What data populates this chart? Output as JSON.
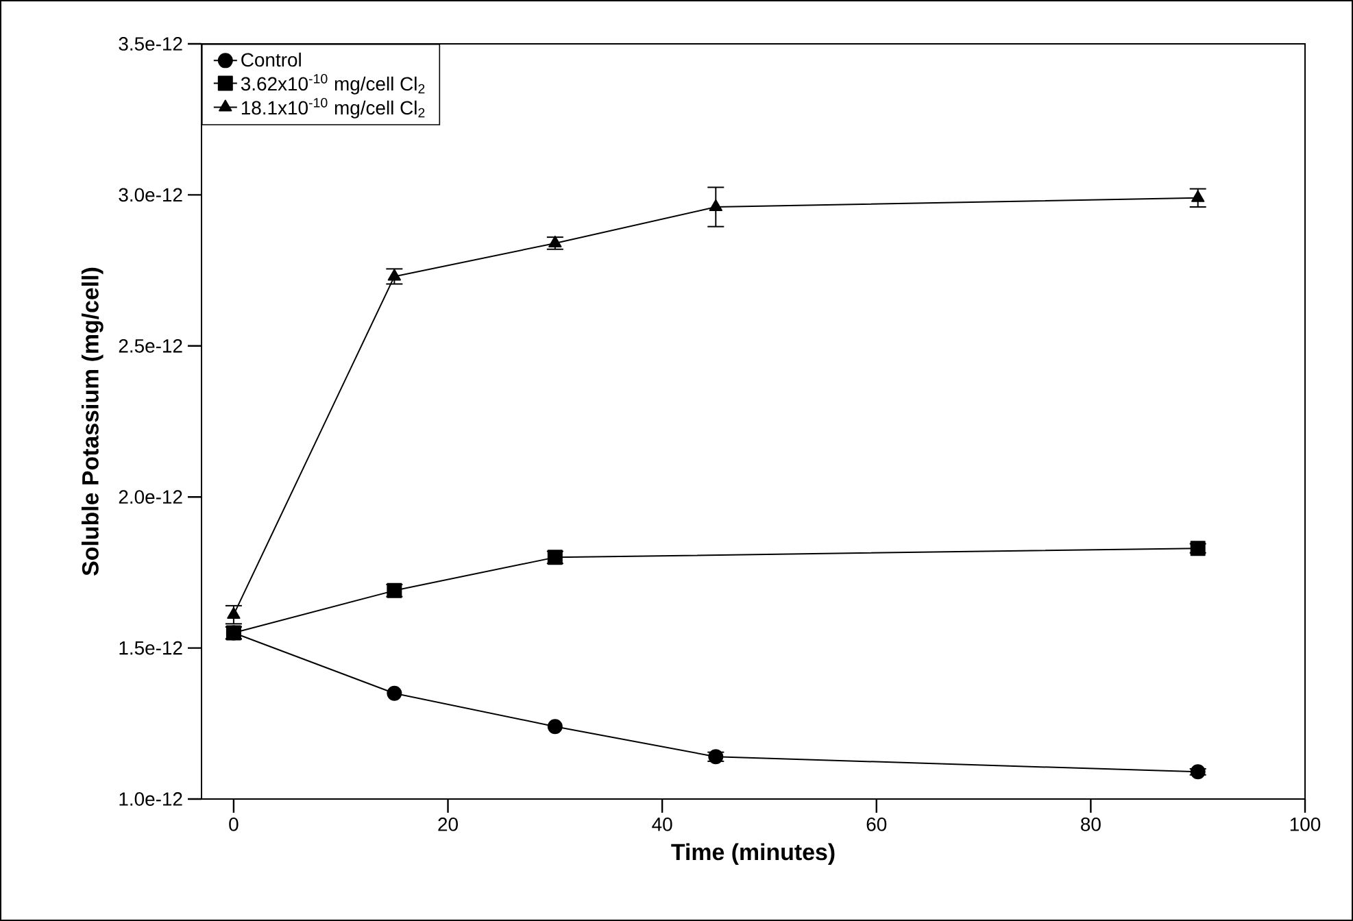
{
  "chart_data": {
    "type": "line",
    "xlabel": "Time (minutes)",
    "ylabel": "Soluble Potassium (mg/cell)",
    "xlim": [
      -3,
      100
    ],
    "xticks": [
      0,
      20,
      40,
      60,
      80,
      100
    ],
    "ylim": [
      1e-12,
      3.5e-12
    ],
    "yticks": [
      {
        "value": 1e-12,
        "label": "1.0e-12"
      },
      {
        "value": 1.5e-12,
        "label": "1.5e-12"
      },
      {
        "value": 2e-12,
        "label": "2.0e-12"
      },
      {
        "value": 2.5e-12,
        "label": "2.5e-12"
      },
      {
        "value": 3e-12,
        "label": "3.0e-12"
      },
      {
        "value": 3.5e-12,
        "label": "3.5e-12"
      }
    ],
    "grid": false,
    "legend": "top left",
    "line_style": "solid",
    "x": [
      0,
      15,
      30,
      45,
      90
    ],
    "series": [
      {
        "name": "Control",
        "color": "#000000",
        "marker": "circle",
        "values": [
          1.55e-12,
          1.35e-12,
          1.24e-12,
          1.14e-12,
          1.09e-12
        ],
        "errors": [
          2e-14,
          null,
          null,
          1.5e-14,
          1e-14
        ]
      },
      {
        "name": "3.62x10$^{-10}$ mg/cell Cl$_{2}$",
        "color": "#000000",
        "marker": "square",
        "values": [
          1.55e-12,
          1.69e-12,
          1.8e-12,
          null,
          1.83e-12
        ],
        "errors": [
          2e-14,
          2e-14,
          2e-14,
          null,
          1.5e-14
        ]
      },
      {
        "name": "18.1x10$^{-10}$ mg/cell Cl$_{2}$",
        "color": "#000000",
        "marker": "triangle",
        "values": [
          1.61e-12,
          2.73e-12,
          2.84e-12,
          2.96e-12,
          2.99e-12
        ],
        "errors": [
          3e-14,
          2.5e-14,
          2e-14,
          6.5e-14,
          3e-14
        ]
      }
    ]
  }
}
